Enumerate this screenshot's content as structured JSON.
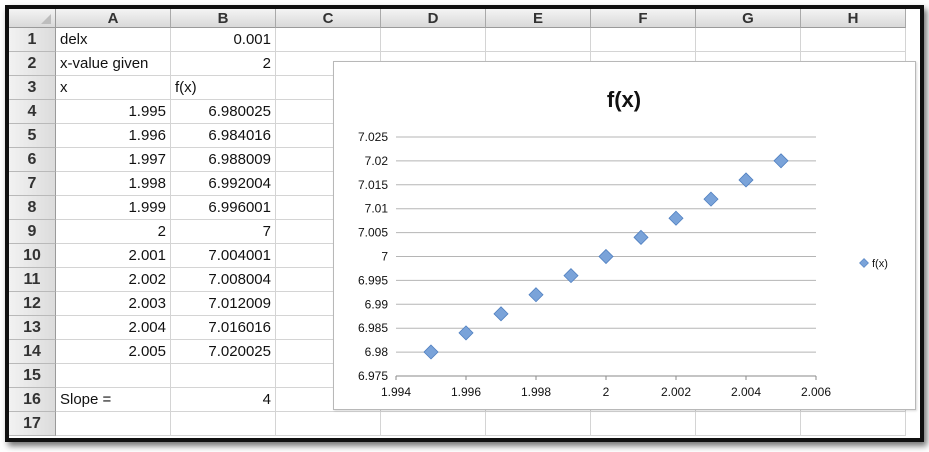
{
  "columns": [
    "A",
    "B",
    "C",
    "D",
    "E",
    "F",
    "G",
    "H"
  ],
  "rows": [
    "1",
    "2",
    "3",
    "4",
    "5",
    "6",
    "7",
    "8",
    "9",
    "10",
    "11",
    "12",
    "13",
    "14",
    "15",
    "16",
    "17"
  ],
  "cells": {
    "A1": "delx",
    "B1": "0.001",
    "A2": "x-value given",
    "B2": "2",
    "A3": "x",
    "B3": "f(x)",
    "A4": "1.995",
    "B4": "6.980025",
    "A5": "1.996",
    "B5": "6.984016",
    "A6": "1.997",
    "B6": "6.988009",
    "A7": "1.998",
    "B7": "6.992004",
    "A8": "1.999",
    "B8": "6.996001",
    "A9": "2",
    "B9": "7",
    "A10": "2.001",
    "B10": "7.004001",
    "A11": "2.002",
    "B11": "7.008004",
    "A12": "2.003",
    "B12": "7.012009",
    "A13": "2.004",
    "B13": "7.016016",
    "A14": "2.005",
    "B14": "7.020025",
    "A16": "Slope =",
    "B16": "4"
  },
  "chart_data": {
    "type": "scatter",
    "title": "f(x)",
    "xlabel": "",
    "ylabel": "",
    "xlim": [
      1.994,
      2.006
    ],
    "ylim": [
      6.975,
      7.025
    ],
    "x_ticks": [
      "1.994",
      "1.996",
      "1.998",
      "2",
      "2.002",
      "2.004",
      "2.006"
    ],
    "y_ticks": [
      "6.975",
      "6.98",
      "6.985",
      "6.99",
      "6.995",
      "7",
      "7.005",
      "7.01",
      "7.015",
      "7.02",
      "7.025"
    ],
    "grid": "horizontal",
    "legend_position": "right",
    "series": [
      {
        "name": "f(x)",
        "marker": "diamond",
        "color": "#7aa3d9",
        "x": [
          1.995,
          1.996,
          1.997,
          1.998,
          1.999,
          2.0,
          2.001,
          2.002,
          2.003,
          2.004,
          2.005
        ],
        "y": [
          6.980025,
          6.984016,
          6.988009,
          6.992004,
          6.996001,
          7.0,
          7.004001,
          7.008004,
          7.012009,
          7.016016,
          7.020025
        ]
      }
    ]
  }
}
